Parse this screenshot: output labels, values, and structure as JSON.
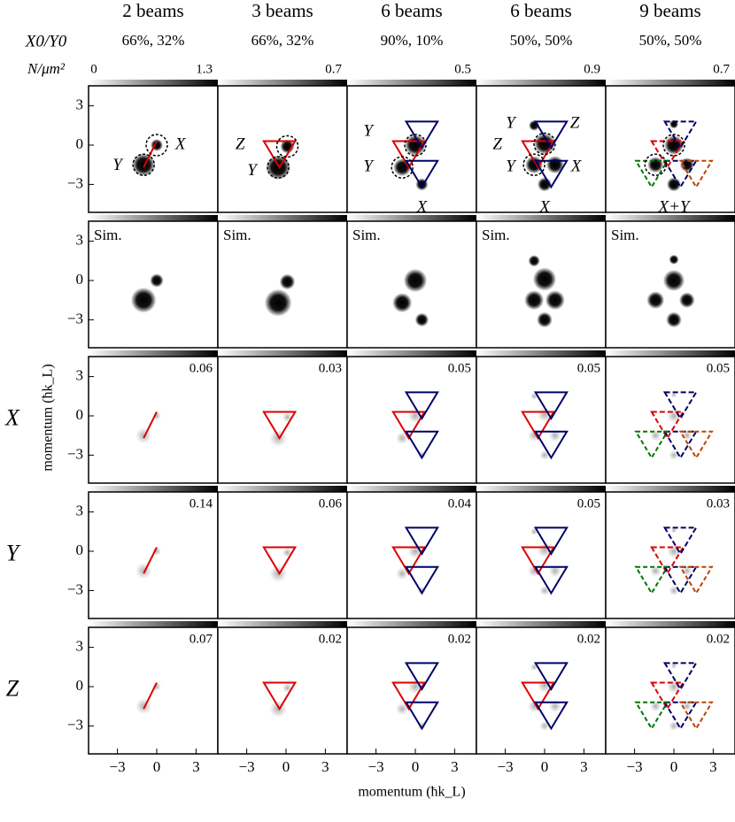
{
  "columns": [
    {
      "title": "2 beams",
      "ratio": "66%, 32%",
      "colorbar_max": 1.3,
      "labels": [
        "X",
        "Y"
      ]
    },
    {
      "title": "3 beams",
      "ratio": "66%, 32%",
      "colorbar_max": 0.7,
      "labels": [
        "Z",
        "Y"
      ]
    },
    {
      "title": "6 beams",
      "ratio": "90%, 10%",
      "colorbar_max": 0.5,
      "labels": [
        "Y",
        "Y",
        "X"
      ]
    },
    {
      "title": "6 beams",
      "ratio": "50%, 50%",
      "colorbar_max": 0.9,
      "labels": [
        "Y",
        "Z",
        "Z",
        "Y",
        "X",
        "X"
      ]
    },
    {
      "title": "9 beams",
      "ratio": "50%, 50%",
      "colorbar_max": 0.7,
      "labels": [
        "X+Y"
      ]
    }
  ],
  "ratio_label": "X0/Y0",
  "colorbar_label": "N/μm²",
  "colorbar_min": 0,
  "sim_label": "Sim.",
  "rows": [
    {
      "label": "X",
      "maxima": [
        0.06,
        0.03,
        0.05,
        0.05,
        0.05
      ]
    },
    {
      "label": "Y",
      "maxima": [
        0.14,
        0.06,
        0.04,
        0.05,
        0.03
      ]
    },
    {
      "label": "Z",
      "maxima": [
        0.07,
        0.02,
        0.02,
        0.02,
        0.02
      ]
    }
  ],
  "y_ticks": [
    "3",
    "0",
    "−3"
  ],
  "x_ticks": [
    "−3",
    "0",
    "3"
  ],
  "x_label": "momentum (ħk_L)",
  "y_label": "momentum (ħk_L)"
}
